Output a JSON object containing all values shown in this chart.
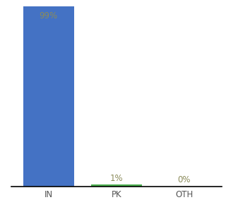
{
  "categories": [
    "IN",
    "PK",
    "OTH"
  ],
  "values": [
    99,
    1,
    0
  ],
  "bar_colors": [
    "#4472c4",
    "#4caf50",
    "#4472c4"
  ],
  "label_texts": [
    "99%",
    "1%",
    "0%"
  ],
  "label_color": "#8b8b5a",
  "tick_color": "#555555",
  "ylim": [
    0,
    100
  ],
  "background_color": "#ffffff",
  "bar_width": 0.75,
  "label_fontsize": 8.5,
  "tick_fontsize": 8.5
}
